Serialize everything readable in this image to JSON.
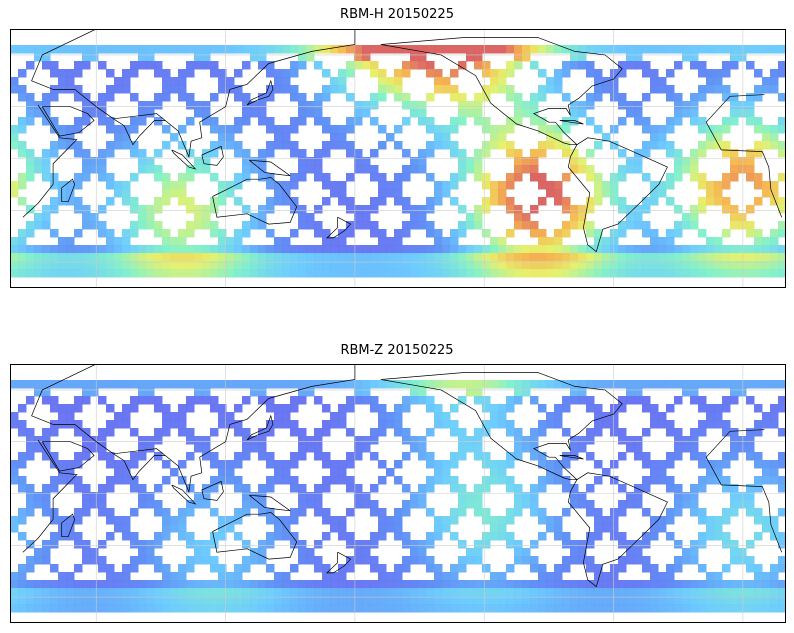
{
  "figure": {
    "panels": [
      {
        "id": "top",
        "title": "RBM-H 20150225",
        "palette": "hot",
        "hotspots": [
          {
            "lon": 265,
            "lat": -22,
            "intensity": 1.0
          },
          {
            "lon": 230,
            "lat": 85,
            "intensity": 0.9
          },
          {
            "lon": 0,
            "lat": -15,
            "intensity": 0.85
          },
          {
            "lon": 100,
            "lat": -30,
            "intensity": 0.6
          },
          {
            "lon": 190,
            "lat": 90,
            "intensity": 0.55
          }
        ]
      },
      {
        "id": "bottom",
        "title": "RBM-Z 20150225",
        "palette": "cool",
        "hotspots": [
          {
            "lon": 240,
            "lat": -12,
            "intensity": 0.55
          },
          {
            "lon": 230,
            "lat": 90,
            "intensity": 0.5
          },
          {
            "lon": 0,
            "lat": -22,
            "intensity": 0.5
          },
          {
            "lon": 115,
            "lat": -30,
            "intensity": 0.4
          }
        ]
      }
    ],
    "colors": {
      "background": "#ffffff",
      "frame": "#000000",
      "gridline": "#cccccc",
      "coastline": "#000000",
      "low": "#6666f0",
      "mid": "#66ccff",
      "high": "#d95e5e"
    }
  }
}
